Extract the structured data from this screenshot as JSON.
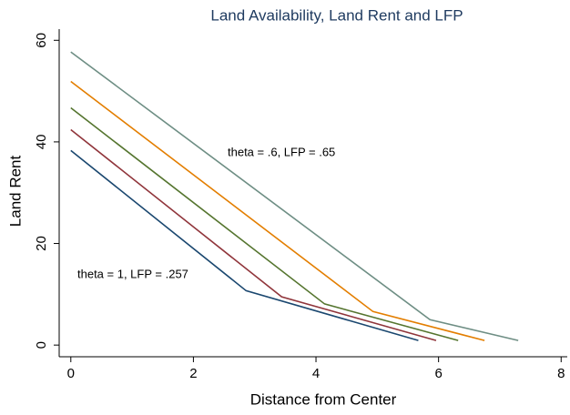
{
  "chart_data": {
    "type": "line",
    "title": "Land Availability, Land Rent and LFP",
    "x_label": "Distance from Center",
    "y_label": "Land Rent",
    "annotations": [
      "theta = .6, LFP = .65",
      "theta = 1, LFP = .257"
    ],
    "series": [
      {
        "color": "#1a476f",
        "x": [
          0,
          2.86,
          5.67
        ],
        "values": [
          38.3,
          10.7,
          0.9
        ]
      },
      {
        "color": "#90353b",
        "x": [
          0,
          3.44,
          5.96
        ],
        "values": [
          42.4,
          9.5,
          0.9
        ]
      },
      {
        "color": "#55752f",
        "x": [
          0,
          4.14,
          6.32
        ],
        "values": [
          46.7,
          8.1,
          0.9
        ]
      },
      {
        "color": "#e37e00",
        "x": [
          0,
          4.93,
          6.75
        ],
        "values": [
          51.9,
          6.6,
          0.9
        ]
      },
      {
        "color": "#6e8e84",
        "x": [
          0,
          5.86,
          7.3
        ],
        "values": [
          57.7,
          5.0,
          0.9
        ]
      }
    ],
    "xlim": [
      -0.19,
      8.1
    ],
    "ylim": [
      -2.3,
      62.2
    ],
    "xticks": [
      0,
      2,
      4,
      6,
      8
    ],
    "yticks": [
      0,
      20,
      40,
      60
    ]
  }
}
